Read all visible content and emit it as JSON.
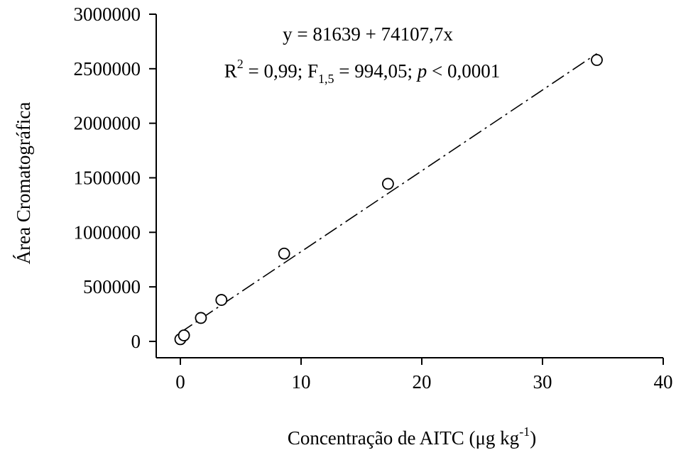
{
  "chart_data": {
    "type": "scatter",
    "title": "",
    "xlabel": {
      "main": "Concentração de AITC (μg kg",
      "sup": "-1",
      "close": ")"
    },
    "ylabel": "Área Cromatográfica",
    "xlim": [
      -2,
      40
    ],
    "ylim": [
      -150000,
      3000000
    ],
    "xticks": [
      0,
      10,
      20,
      30,
      40
    ],
    "yticks": [
      0,
      500000,
      1000000,
      1500000,
      2000000,
      2500000,
      3000000
    ],
    "xtick_labels": [
      "0",
      "10",
      "20",
      "30",
      "40"
    ],
    "ytick_labels": [
      "0",
      "500000",
      "1000000",
      "1500000",
      "2000000",
      "2500000",
      "3000000"
    ],
    "grid": false,
    "series": [
      {
        "marker": "open-circle",
        "x": [
          0,
          0.3,
          1.7,
          3.4,
          8.6,
          17.2,
          34.5
        ],
        "y": [
          20000,
          55000,
          215000,
          380000,
          805000,
          1445000,
          2580000
        ]
      }
    ],
    "fit": {
      "intercept": 81639,
      "slope": 74107.7,
      "x_range": [
        0,
        34.5
      ],
      "style": "dash-dot"
    },
    "annotations": {
      "equation": "y = 81639 + 74107,7x",
      "stats": {
        "r_base": "R",
        "r_sup": "2",
        "r_rest": " = 0,99; F",
        "f_sub": "1,5",
        "f_rest": " = 994,05; ",
        "p_italic": "p",
        "p_rest": " < 0,0001"
      }
    }
  }
}
